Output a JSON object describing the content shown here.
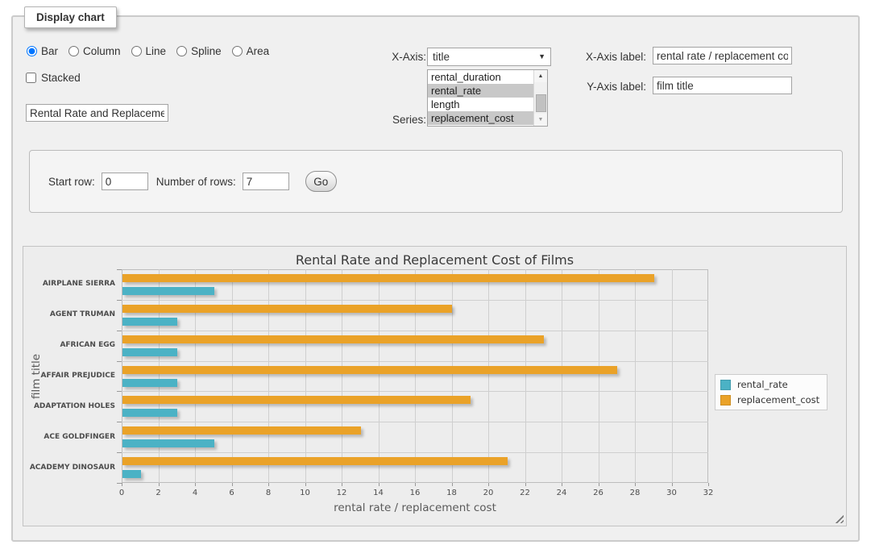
{
  "panel": {
    "title": "Display chart"
  },
  "form": {
    "chart_types": {
      "options": [
        {
          "label": "Bar",
          "selected": true
        },
        {
          "label": "Column",
          "selected": false
        },
        {
          "label": "Line",
          "selected": false
        },
        {
          "label": "Spline",
          "selected": false
        },
        {
          "label": "Area",
          "selected": false
        }
      ]
    },
    "stacked": {
      "label": "Stacked",
      "checked": false
    },
    "chart_title_value": "Rental Rate and Replacemer",
    "x_axis": {
      "label": "X-Axis:",
      "selected": "title"
    },
    "series_picker": {
      "label": "Series:",
      "options": [
        {
          "label": "rental_duration",
          "selected": false
        },
        {
          "label": "rental_rate",
          "selected": true
        },
        {
          "label": "length",
          "selected": false
        },
        {
          "label": "replacement_cost",
          "selected": true
        }
      ]
    },
    "x_axis_label": {
      "label": "X-Axis label:",
      "value": "rental rate / replacement cost"
    },
    "y_axis_label": {
      "label": "Y-Axis label:",
      "value": "film title"
    }
  },
  "rows_panel": {
    "start_row_label": "Start row:",
    "start_row_value": "0",
    "number_of_rows_label": "Number of rows:",
    "number_of_rows_value": "7",
    "go_label": "Go"
  },
  "chart_data": {
    "type": "bar",
    "orientation": "horizontal",
    "title": "Rental Rate and Replacement Cost of Films",
    "categories": [
      "AIRPLANE SIERRA",
      "AGENT TRUMAN",
      "AFRICAN EGG",
      "AFFAIR PREJUDICE",
      "ADAPTATION HOLES",
      "ACE GOLDFINGER",
      "ACADEMY DINOSAUR"
    ],
    "series": [
      {
        "name": "rental_rate",
        "color": "#4bb2c5",
        "values": [
          4.99,
          2.99,
          2.99,
          2.99,
          2.99,
          4.99,
          0.99
        ]
      },
      {
        "name": "replacement_cost",
        "color": "#eaa228",
        "values": [
          28.99,
          17.99,
          22.99,
          26.99,
          18.99,
          12.99,
          20.99
        ]
      }
    ],
    "bar_order_top_to_bottom": [
      "replacement_cost",
      "rental_rate"
    ],
    "xlabel": "rental rate / replacement cost",
    "ylabel": "film title",
    "xlim": [
      0,
      32
    ],
    "x_ticks": [
      0,
      2,
      4,
      6,
      8,
      10,
      12,
      14,
      16,
      18,
      20,
      22,
      24,
      26,
      28,
      30,
      32
    ],
    "grid": true,
    "legend_position": "right-middle"
  }
}
